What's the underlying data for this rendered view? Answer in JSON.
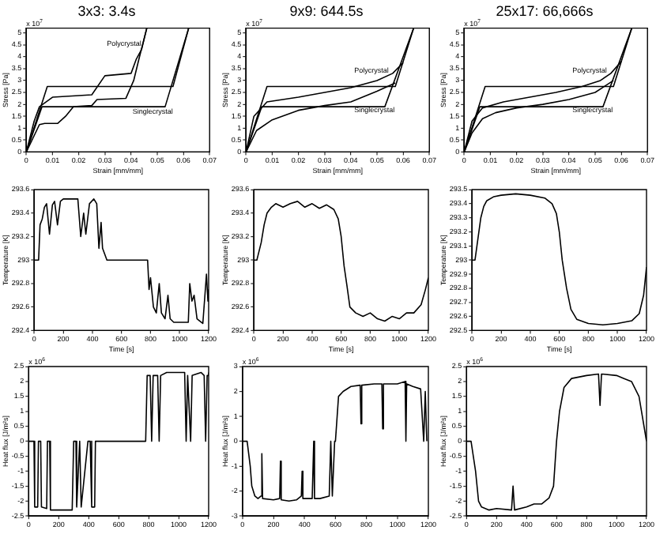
{
  "chart_data": [
    {
      "type": "line",
      "title": "3x3: 3.4s",
      "xlabel": "Strain [mm/mm]",
      "ylabel": "Stress [Pa]",
      "xlim": [
        0,
        0.07
      ],
      "xticks": [
        0,
        0.01,
        0.02,
        0.03,
        0.04,
        0.05,
        0.06,
        0.07
      ],
      "ylim": [
        0,
        5.2
      ],
      "yticks": [
        0,
        0.5,
        1,
        1.5,
        2,
        2.5,
        3,
        3.5,
        4,
        4.5,
        5
      ],
      "annotations": [
        "x 10$^{7}$",
        "Polycrystal",
        "Singlecrystal"
      ],
      "series": [
        {
          "color": "#000000",
          "x": [
            0,
            0.003,
            0.005,
            0.01,
            0.025,
            0.03,
            0.04,
            0.042,
            0.044,
            0.046
          ],
          "values": [
            0,
            1.3,
            1.9,
            2.3,
            2.4,
            3.2,
            3.3,
            3.9,
            4.3,
            5.2
          ]
        },
        {
          "color": "#000000",
          "x": [
            0,
            0.005,
            0.007,
            0.012,
            0.015,
            0.018,
            0.025,
            0.027,
            0.038,
            0.041,
            0.043,
            0.046
          ],
          "values": [
            0,
            1.15,
            1.2,
            1.2,
            1.5,
            1.9,
            1.95,
            2.2,
            2.25,
            3.0,
            3.9,
            5.2
          ]
        },
        {
          "color": "#000000",
          "x": [
            0,
            0.008,
            0.056,
            0.062
          ],
          "values": [
            0,
            2.75,
            2.75,
            5.2
          ]
        },
        {
          "color": "#000000",
          "x": [
            0,
            0.006,
            0.053,
            0.062
          ],
          "values": [
            0,
            1.9,
            1.9,
            5.2
          ]
        }
      ]
    },
    {
      "type": "line",
      "title": "9x9: 644.5s",
      "xlabel": "Strain [mm/mm]",
      "ylabel": "Stress [Pa]",
      "xlim": [
        0,
        0.07
      ],
      "xticks": [
        0,
        0.01,
        0.02,
        0.03,
        0.04,
        0.05,
        0.06,
        0.07
      ],
      "ylim": [
        0,
        5.2
      ],
      "yticks": [
        0,
        0.5,
        1,
        1.5,
        2,
        2.5,
        3,
        3.5,
        4,
        4.5,
        5
      ],
      "annotations": [
        "x 10$^{7}$",
        "Polycrystal",
        "Singlecrystal"
      ],
      "series": [
        {
          "color": "#000000",
          "x": [
            0,
            0.003,
            0.008,
            0.02,
            0.03,
            0.04,
            0.05,
            0.056,
            0.06
          ],
          "values": [
            0,
            1.5,
            2.1,
            2.3,
            2.5,
            2.7,
            3.0,
            3.3,
            3.75
          ]
        },
        {
          "color": "#000000",
          "x": [
            0,
            0.004,
            0.01,
            0.02,
            0.03,
            0.04,
            0.05,
            0.057
          ],
          "values": [
            0,
            0.9,
            1.35,
            1.75,
            1.95,
            2.1,
            2.55,
            2.9
          ]
        },
        {
          "color": "#000000",
          "x": [
            0,
            0.008,
            0.057,
            0.064
          ],
          "values": [
            0,
            2.75,
            2.75,
            5.2
          ]
        },
        {
          "color": "#000000",
          "x": [
            0,
            0.006,
            0.053,
            0.064
          ],
          "values": [
            0,
            1.9,
            1.9,
            5.2
          ]
        }
      ]
    },
    {
      "type": "line",
      "title": "25x17: 66,666s",
      "xlabel": "Strain [mm/mm]",
      "ylabel": "Stress [Pa]",
      "xlim": [
        0,
        0.07
      ],
      "xticks": [
        0,
        0.01,
        0.02,
        0.03,
        0.04,
        0.05,
        0.06,
        0.07
      ],
      "ylim": [
        0,
        5.2
      ],
      "yticks": [
        0,
        0.5,
        1,
        1.5,
        2,
        2.5,
        3,
        3.5,
        4,
        4.5,
        5
      ],
      "annotations": [
        "x 10$^{7}$",
        "Polycrystal",
        "Singlecrystal"
      ],
      "series": [
        {
          "color": "#000000",
          "x": [
            0,
            0.003,
            0.007,
            0.015,
            0.025,
            0.035,
            0.045,
            0.052,
            0.056,
            0.06
          ],
          "values": [
            0,
            1.3,
            1.85,
            2.1,
            2.3,
            2.5,
            2.75,
            3.0,
            3.3,
            3.8
          ]
        },
        {
          "color": "#000000",
          "x": [
            0,
            0.003,
            0.007,
            0.012,
            0.02,
            0.03,
            0.04,
            0.05,
            0.057
          ],
          "values": [
            0,
            0.8,
            1.4,
            1.65,
            1.85,
            2.0,
            2.2,
            2.5,
            3.0
          ]
        },
        {
          "color": "#000000",
          "x": [
            0,
            0.008,
            0.057,
            0.064
          ],
          "values": [
            0,
            2.75,
            2.75,
            5.2
          ]
        },
        {
          "color": "#000000",
          "x": [
            0,
            0.006,
            0.053,
            0.064
          ],
          "values": [
            0,
            1.9,
            1.9,
            5.2
          ]
        }
      ]
    },
    {
      "type": "line",
      "xlabel": "Time [s]",
      "ylabel": "Temperature [K]",
      "xlim": [
        0,
        1200
      ],
      "xticks": [
        0,
        200,
        400,
        600,
        800,
        1000,
        1200
      ],
      "ylim": [
        292.4,
        293.6
      ],
      "yticks": [
        292.4,
        292.6,
        292.8,
        293,
        293.2,
        293.4,
        293.6
      ],
      "series": [
        {
          "color": "#000000",
          "x": [
            0,
            30,
            40,
            55,
            70,
            85,
            105,
            125,
            140,
            160,
            180,
            200,
            300,
            320,
            340,
            355,
            380,
            410,
            430,
            445,
            460,
            470,
            500,
            780,
            790,
            800,
            820,
            840,
            860,
            875,
            900,
            920,
            935,
            960,
            1060,
            1070,
            1085,
            1100,
            1120,
            1160,
            1185,
            1195,
            1200
          ],
          "values": [
            293,
            293,
            293.3,
            293.35,
            293.45,
            293.48,
            293.22,
            293.47,
            293.5,
            293.3,
            293.5,
            293.52,
            293.52,
            293.2,
            293.4,
            293.22,
            293.48,
            293.52,
            293.48,
            293.1,
            293.32,
            293.1,
            293,
            293,
            292.75,
            292.85,
            292.6,
            292.55,
            292.8,
            292.55,
            292.5,
            292.7,
            292.5,
            292.47,
            292.47,
            292.8,
            292.65,
            292.7,
            292.5,
            292.46,
            292.88,
            292.65,
            292.75
          ]
        }
      ]
    },
    {
      "type": "line",
      "xlabel": "Time [s]",
      "ylabel": "Temperature [K]",
      "xlim": [
        0,
        1200
      ],
      "xticks": [
        0,
        200,
        400,
        600,
        800,
        1000,
        1200
      ],
      "ylim": [
        292.4,
        293.6
      ],
      "yticks": [
        292.4,
        292.6,
        292.8,
        293,
        293.2,
        293.4,
        293.6
      ],
      "series": [
        {
          "color": "#000000",
          "x": [
            0,
            20,
            50,
            70,
            90,
            120,
            150,
            200,
            250,
            300,
            350,
            400,
            450,
            500,
            550,
            580,
            600,
            620,
            640,
            660,
            700,
            750,
            800,
            850,
            900,
            950,
            1000,
            1050,
            1100,
            1150,
            1180,
            1200
          ],
          "values": [
            293,
            293,
            293.15,
            293.3,
            293.4,
            293.45,
            293.48,
            293.45,
            293.48,
            293.5,
            293.45,
            293.48,
            293.44,
            293.47,
            293.43,
            293.35,
            293.2,
            292.95,
            292.78,
            292.6,
            292.55,
            292.52,
            292.55,
            292.5,
            292.48,
            292.52,
            292.5,
            292.55,
            292.55,
            292.62,
            292.75,
            292.85
          ]
        }
      ]
    },
    {
      "type": "line",
      "xlabel": "Time [s]",
      "ylabel": "Temperature [K]",
      "xlim": [
        0,
        1200
      ],
      "xticks": [
        0,
        200,
        400,
        600,
        800,
        1000,
        1200
      ],
      "ylim": [
        292.5,
        293.5
      ],
      "yticks": [
        292.5,
        292.6,
        292.7,
        292.8,
        292.9,
        293,
        293.1,
        293.2,
        293.3,
        293.4,
        293.5
      ],
      "series": [
        {
          "color": "#000000",
          "x": [
            0,
            20,
            40,
            60,
            80,
            100,
            150,
            200,
            300,
            400,
            500,
            550,
            580,
            600,
            620,
            650,
            680,
            720,
            800,
            900,
            1000,
            1100,
            1150,
            1180,
            1200
          ],
          "values": [
            293,
            293,
            293.15,
            293.3,
            293.38,
            293.42,
            293.45,
            293.46,
            293.47,
            293.46,
            293.44,
            293.4,
            293.33,
            293.2,
            293.0,
            292.8,
            292.65,
            292.58,
            292.55,
            292.54,
            292.55,
            292.57,
            292.62,
            292.75,
            292.95
          ]
        }
      ]
    },
    {
      "type": "line",
      "ylabel": "Heat flux [J/m²s]",
      "xlim": [
        0,
        1200
      ],
      "xticks": [
        0,
        200,
        400,
        600,
        800,
        1000,
        1200
      ],
      "ylim": [
        -2.5,
        2.5
      ],
      "yticks": [
        -2.5,
        -2,
        -1.5,
        -1,
        -0.5,
        0,
        0.5,
        1,
        1.5,
        2,
        2.5
      ],
      "annotations": [
        "x 10$^{6}$"
      ],
      "series": [
        {
          "color": "#000000",
          "x": [
            0,
            35,
            40,
            60,
            65,
            80,
            85,
            120,
            125,
            140,
            145,
            290,
            300,
            315,
            320,
            340,
            350,
            395,
            410,
            420,
            440,
            445,
            780,
            790,
            810,
            820,
            830,
            860,
            870,
            880,
            920,
            1040,
            1050,
            1060,
            1080,
            1090,
            1150,
            1170,
            1180,
            1190,
            1200
          ],
          "values": [
            0,
            0,
            -2.2,
            -2.2,
            0,
            0,
            -2.2,
            -2.25,
            0,
            0,
            -2.3,
            -2.3,
            0,
            0,
            -2.2,
            0,
            -2.2,
            0,
            0,
            -2.2,
            -2.2,
            0,
            0,
            2.2,
            2.2,
            0,
            2.2,
            2.2,
            0,
            2.2,
            2.3,
            2.3,
            0,
            2.2,
            0,
            2.2,
            2.3,
            2.2,
            0,
            2.2,
            2.3
          ]
        }
      ]
    },
    {
      "type": "line",
      "ylabel": "Heat flux [J/m²s]",
      "xlim": [
        0,
        1200
      ],
      "xticks": [
        0,
        200,
        400,
        600,
        800,
        1000,
        1200
      ],
      "ylim": [
        -3,
        3
      ],
      "yticks": [
        -3,
        -2,
        -1,
        0,
        1,
        2,
        3
      ],
      "annotations": [
        "x 10$^{6}$"
      ],
      "series": [
        {
          "color": "#000000",
          "x": [
            0,
            30,
            50,
            60,
            80,
            100,
            120,
            125,
            130,
            200,
            240,
            245,
            250,
            300,
            350,
            380,
            385,
            390,
            450,
            460,
            465,
            500,
            560,
            570,
            580,
            595,
            600,
            620,
            650,
            700,
            760,
            765,
            770,
            850,
            900,
            905,
            910,
            1000,
            1050,
            1055,
            1060,
            1100,
            1150,
            1170,
            1180,
            1190,
            1200
          ],
          "values": [
            0,
            0,
            -1,
            -1.8,
            -2.2,
            -2.3,
            -2.2,
            -0.5,
            -2.3,
            -2.35,
            -2.3,
            -0.8,
            -2.35,
            -2.4,
            -2.35,
            -2.2,
            -1.2,
            -2.3,
            -2.3,
            0,
            -2.3,
            -2.3,
            -2.2,
            0,
            -2.2,
            0,
            0,
            1.8,
            2,
            2.2,
            2.25,
            0.7,
            2.25,
            2.3,
            2.3,
            0.5,
            2.3,
            2.3,
            2.4,
            0,
            2.3,
            2.2,
            2.1,
            0,
            2.0,
            0,
            0
          ]
        }
      ]
    },
    {
      "type": "line",
      "ylabel": "Heat flux [J/m²s]",
      "xlim": [
        0,
        1200
      ],
      "xticks": [
        0,
        200,
        400,
        600,
        800,
        1000,
        1200
      ],
      "ylim": [
        -2.5,
        2.5
      ],
      "yticks": [
        -2.5,
        -2,
        -1.5,
        -1,
        -0.5,
        0,
        0.5,
        1,
        1.5,
        2,
        2.5
      ],
      "annotations": [
        "x 10$^{6}$"
      ],
      "series": [
        {
          "color": "#000000",
          "x": [
            0,
            30,
            60,
            80,
            100,
            150,
            200,
            300,
            310,
            320,
            400,
            450,
            500,
            550,
            580,
            600,
            620,
            650,
            700,
            800,
            880,
            890,
            900,
            1000,
            1050,
            1100,
            1150,
            1200
          ],
          "values": [
            0,
            0,
            -1,
            -2,
            -2.2,
            -2.3,
            -2.25,
            -2.3,
            -1.5,
            -2.3,
            -2.2,
            -2.1,
            -2.1,
            -1.9,
            -1.5,
            0,
            1,
            1.8,
            2.1,
            2.2,
            2.25,
            1.2,
            2.25,
            2.2,
            2.1,
            2,
            1.5,
            0
          ]
        }
      ]
    }
  ]
}
